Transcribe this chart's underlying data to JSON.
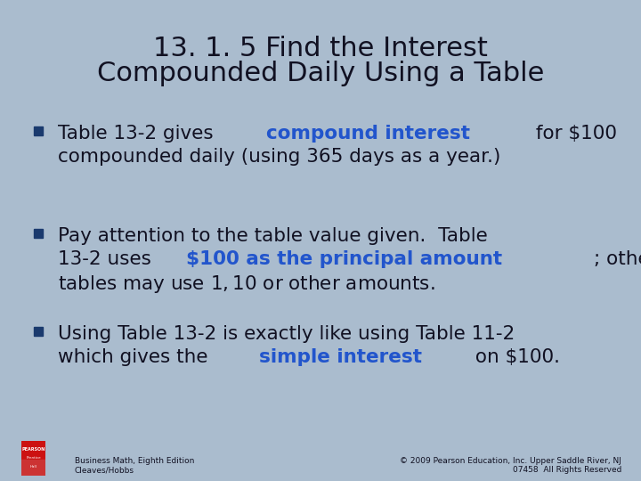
{
  "background_color": "#aabcce",
  "title_line1": "13. 1. 5 Find the Interest",
  "title_line2": "Compounded Daily Using a Table",
  "title_color": "#111122",
  "title_fontsize": 22,
  "bullet_color": "#1a3a6e",
  "bullet_size": 15.5,
  "normal_color": "#111122",
  "highlight_color": "#2255cc",
  "bullets": [
    {
      "lines": [
        [
          {
            "text": "Table 13-2 gives ",
            "bold": false,
            "color": "#111122"
          },
          {
            "text": "compound interest",
            "bold": true,
            "color": "#2255cc"
          },
          {
            "text": " for $100",
            "bold": false,
            "color": "#111122"
          }
        ],
        [
          {
            "text": "compounded daily (using 365 days as a year.)",
            "bold": false,
            "color": "#111122"
          }
        ]
      ]
    },
    {
      "lines": [
        [
          {
            "text": "Pay attention to the table value given.  Table",
            "bold": false,
            "color": "#111122"
          }
        ],
        [
          {
            "text": "13-2 uses ",
            "bold": false,
            "color": "#111122"
          },
          {
            "text": "$100 as the principal amount",
            "bold": true,
            "color": "#2255cc"
          },
          {
            "text": "; other",
            "bold": false,
            "color": "#111122"
          }
        ],
        [
          {
            "text": "tables may use $1, $10 or other amounts.",
            "bold": false,
            "color": "#111122"
          }
        ]
      ]
    },
    {
      "lines": [
        [
          {
            "text": "Using Table 13-2 is exactly like using Table 11-2",
            "bold": false,
            "color": "#111122"
          }
        ],
        [
          {
            "text": "which gives the ",
            "bold": false,
            "color": "#111122"
          },
          {
            "text": "simple interest",
            "bold": true,
            "color": "#2255cc"
          },
          {
            "text": " on $100.",
            "bold": false,
            "color": "#111122"
          }
        ]
      ]
    }
  ],
  "footer_left_line1": "Business Math, Eighth Edition",
  "footer_left_line2": "Cleaves/Hobbs",
  "footer_right_line1": "© 2009 Pearson Education, Inc. Upper Saddle River, NJ",
  "footer_right_line2": "07458  All Rights Reserved",
  "footer_color": "#111122",
  "footer_fontsize": 6.5
}
